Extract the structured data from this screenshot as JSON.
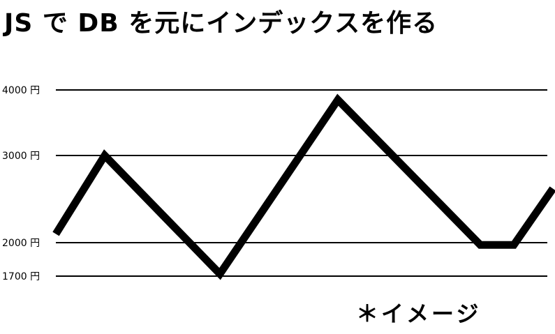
{
  "chart_data": {
    "type": "line",
    "title": "JS で DB を元にインデックスを作る",
    "note": "＊イメージ",
    "y_ticks": [
      {
        "value": 4000,
        "label": "4000 円"
      },
      {
        "value": 3000,
        "label": "3000 円"
      },
      {
        "value": 2000,
        "label": "2000 円"
      },
      {
        "value": 1700,
        "label": "1700 円"
      }
    ],
    "grid": true,
    "series": [
      {
        "color": "#000000",
        "points": [
          {
            "x": 0,
            "y": 2100
          },
          {
            "x": 1,
            "y": 3000
          },
          {
            "x": 2,
            "y": 1720
          },
          {
            "x": 3,
            "y": 3850
          },
          {
            "x": 4,
            "y": 1980
          },
          {
            "x": 5,
            "y": 1980
          },
          {
            "x": 6,
            "y": 2620
          }
        ]
      }
    ]
  }
}
